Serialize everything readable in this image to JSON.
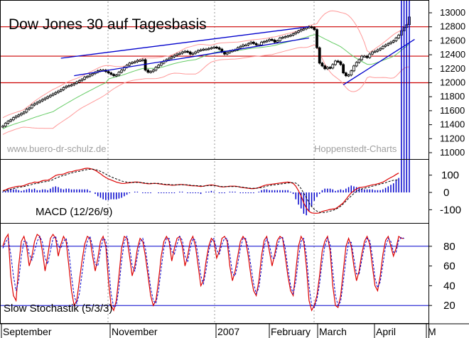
{
  "title": "Dow Jones 30 auf Tagesbasis",
  "watermark_left": "www.buero-dr-schulz.de",
  "watermark_right": "Hoppenstedt-Charts",
  "colors": {
    "frame": "#000000",
    "resistance": "#cc0000",
    "trend": "#0000cc",
    "band": "#ff9999",
    "ma": "#66cc66",
    "panel_sep": "#000000",
    "month_sep": "#999999"
  },
  "chart_data": [
    {
      "type": "candlestick",
      "title": "Dow Jones 30 auf Tagesbasis",
      "y_ticks": [
        "13000",
        "12800",
        "12600",
        "12400",
        "12200",
        "12000",
        "11800",
        "11600",
        "11400",
        "11200",
        "11000"
      ],
      "ylim": [
        11000,
        13000
      ],
      "x_labels": [
        "September",
        "November",
        "2007",
        "February",
        "March",
        "April",
        "M"
      ],
      "horizontal_lines": [
        12800,
        12380,
        12000
      ],
      "close": [
        11380,
        11420,
        11450,
        11470,
        11500,
        11520,
        11540,
        11560,
        11580,
        11620,
        11640,
        11680,
        11700,
        11720,
        11740,
        11760,
        11780,
        11800,
        11820,
        11840,
        11860,
        11880,
        11900,
        11930,
        11950,
        11960,
        11970,
        11990,
        12010,
        12030,
        12050,
        12080,
        12090,
        12110,
        12130,
        12150,
        12170,
        12180,
        12180,
        12160,
        12140,
        12120,
        12100,
        12110,
        12150,
        12180,
        12220,
        12250,
        12280,
        12290,
        12300,
        12320,
        12320,
        12330,
        12180,
        12150,
        12160,
        12180,
        12220,
        12250,
        12280,
        12310,
        12330,
        12350,
        12370,
        12390,
        12410,
        12420,
        12440,
        12450,
        12440,
        12410,
        12420,
        12440,
        12460,
        12470,
        12480,
        12480,
        12490,
        12500,
        12510,
        12500,
        12480,
        12440,
        12410,
        12430,
        12450,
        12460,
        12470,
        12500,
        12520,
        12540,
        12540,
        12560,
        12580,
        12560,
        12540,
        12540,
        12580,
        12590,
        12600,
        12620,
        12610,
        12580,
        12600,
        12640,
        12650,
        12660,
        12670,
        12680,
        12700,
        12720,
        12740,
        12760,
        12770,
        12790,
        12800,
        12790,
        12760,
        12500,
        12280,
        12240,
        12200,
        12220,
        12210,
        12260,
        12310,
        12300,
        12260,
        12140,
        12100,
        12110,
        12170,
        12240,
        12290,
        12330,
        12380,
        12380,
        12360,
        12410,
        12440,
        12450,
        12470,
        12490,
        12520,
        12540,
        12560,
        12580,
        12600,
        12640,
        12680,
        12740,
        12790,
        12830,
        12940
      ],
      "upper_trendline": {
        "from": [
          22,
          12350
        ],
        "to": [
          116,
          12800
        ]
      },
      "lower_trendline": {
        "from": [
          27,
          12100
        ],
        "to": [
          116,
          12640
        ]
      },
      "rising_trendline": {
        "from": [
          129,
          11970
        ],
        "to": [
          156,
          12620
        ]
      }
    },
    {
      "type": "macd",
      "label": "MACD (12/26/9)",
      "y_ticks": [
        "100",
        "0",
        "-100"
      ],
      "ylim": [
        -160,
        160
      ],
      "macd": [
        10,
        14,
        22,
        26,
        30,
        34,
        36,
        36,
        40,
        46,
        52,
        54,
        60,
        58,
        62,
        68,
        70,
        70,
        78,
        88,
        98,
        102,
        104,
        106,
        112,
        118,
        120,
        124,
        128,
        130,
        134,
        138,
        140,
        138,
        134,
        128,
        118,
        108,
        96,
        86,
        78,
        72,
        66,
        60,
        56,
        52,
        52,
        54,
        56,
        58,
        60,
        60,
        58,
        54,
        52,
        50,
        50,
        52,
        52,
        50,
        48,
        46,
        44,
        44,
        42,
        42,
        44,
        46,
        46,
        44,
        42,
        40,
        38,
        38,
        36,
        34,
        36,
        40,
        42,
        44,
        42,
        38,
        34,
        32,
        32,
        34,
        36,
        36,
        36,
        34,
        30,
        28,
        26,
        24,
        22,
        22,
        24,
        28,
        34,
        40,
        44,
        46,
        48,
        50,
        52,
        54,
        56,
        58,
        60,
        58,
        52,
        36,
        10,
        -20,
        -60,
        -90,
        -110,
        -118,
        -120,
        -120,
        -118,
        -110,
        -106,
        -102,
        -98,
        -96,
        -94,
        -84,
        -72,
        -60,
        -40,
        -20,
        -2,
        10,
        20,
        28,
        30,
        32,
        36,
        40,
        44,
        46,
        50,
        54,
        60,
        68,
        78,
        86,
        94,
        104,
        112
      ],
      "signal": [
        8,
        10,
        14,
        18,
        22,
        26,
        30,
        32,
        34,
        38,
        42,
        46,
        50,
        52,
        56,
        60,
        62,
        64,
        68,
        74,
        82,
        88,
        94,
        98,
        102,
        108,
        112,
        116,
        120,
        122,
        126,
        130,
        132,
        134,
        134,
        132,
        128,
        122,
        114,
        106,
        98,
        90,
        84,
        78,
        72,
        66,
        62,
        60,
        58,
        58,
        58,
        58,
        58,
        56,
        54,
        52,
        52,
        52,
        52,
        52,
        50,
        48,
        46,
        46,
        44,
        44,
        44,
        44,
        44,
        44,
        44,
        42,
        40,
        40,
        38,
        38,
        36,
        38,
        40,
        40,
        40,
        38,
        36,
        34,
        34,
        34,
        34,
        34,
        34,
        34,
        32,
        30,
        28,
        26,
        24,
        24,
        24,
        26,
        28,
        32,
        36,
        40,
        42,
        44,
        46,
        48,
        50,
        52,
        54,
        56,
        56,
        54,
        42,
        22,
        -4,
        -30,
        -60,
        -82,
        -98,
        -108,
        -114,
        -116,
        -116,
        -112,
        -108,
        -104,
        -98,
        -90,
        -80,
        -66,
        -50,
        -34,
        -20,
        -6,
        6,
        14,
        20,
        24,
        28,
        32,
        36,
        40,
        44,
        48,
        52,
        56,
        62,
        66,
        70,
        72,
        74
      ]
    },
    {
      "type": "stochastic",
      "label": "Slow Stochastik (5/3/3)",
      "y_ticks": [
        "80",
        "60",
        "40",
        "20"
      ],
      "ylim": [
        0,
        100
      ],
      "reference_lines": [
        80,
        20
      ],
      "k": [
        80,
        88,
        92,
        50,
        30,
        25,
        60,
        85,
        90,
        80,
        60,
        70,
        85,
        92,
        90,
        75,
        55,
        70,
        88,
        92,
        88,
        70,
        82,
        90,
        85,
        60,
        35,
        20,
        25,
        45,
        65,
        82,
        90,
        88,
        70,
        55,
        68,
        85,
        90,
        80,
        45,
        20,
        15,
        25,
        50,
        78,
        90,
        88,
        70,
        50,
        60,
        78,
        88,
        85,
        70,
        50,
        30,
        20,
        25,
        45,
        70,
        85,
        90,
        85,
        65,
        78,
        88,
        90,
        80,
        60,
        70,
        85,
        90,
        80,
        60,
        40,
        45,
        65,
        80,
        88,
        85,
        68,
        75,
        88,
        90,
        85,
        60,
        45,
        55,
        70,
        85,
        90,
        86,
        70,
        50,
        35,
        30,
        45,
        70,
        86,
        90,
        75,
        60,
        72,
        86,
        90,
        88,
        70,
        50,
        35,
        30,
        55,
        80,
        90,
        85,
        60,
        25,
        15,
        20,
        30,
        50,
        75,
        85,
        90,
        75,
        40,
        20,
        18,
        30,
        55,
        80,
        88,
        80,
        60,
        45,
        55,
        72,
        85,
        90,
        82,
        60,
        40,
        35,
        50,
        72,
        86,
        90,
        80,
        70,
        78,
        90,
        88,
        88
      ],
      "d": [
        78,
        84,
        88,
        72,
        50,
        35,
        45,
        70,
        85,
        85,
        72,
        66,
        75,
        85,
        90,
        84,
        68,
        62,
        75,
        88,
        90,
        80,
        78,
        85,
        88,
        75,
        50,
        30,
        22,
        32,
        52,
        72,
        85,
        90,
        80,
        62,
        60,
        76,
        88,
        86,
        62,
        32,
        18,
        20,
        38,
        65,
        85,
        90,
        80,
        60,
        55,
        70,
        84,
        88,
        78,
        58,
        38,
        25,
        22,
        35,
        58,
        78,
        88,
        88,
        75,
        72,
        82,
        90,
        86,
        70,
        64,
        78,
        88,
        86,
        70,
        50,
        42,
        56,
        75,
        85,
        88,
        76,
        72,
        82,
        88,
        88,
        72,
        52,
        50,
        62,
        78,
        88,
        88,
        78,
        60,
        42,
        32,
        38,
        58,
        80,
        88,
        82,
        68,
        68,
        80,
        88,
        89,
        78,
        58,
        40,
        32,
        44,
        68,
        85,
        88,
        72,
        40,
        20,
        18,
        26,
        42,
        64,
        80,
        88,
        82,
        55,
        30,
        20,
        24,
        44,
        68,
        84,
        84,
        68,
        52,
        52,
        66,
        80,
        88,
        86,
        70,
        48,
        38,
        44,
        62,
        80,
        88,
        85,
        74,
        74,
        86,
        89,
        88
      ]
    }
  ]
}
